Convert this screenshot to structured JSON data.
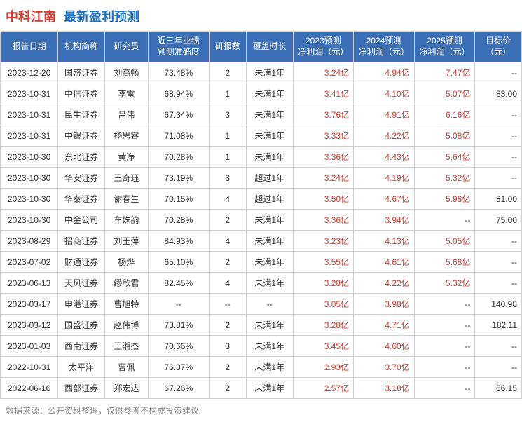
{
  "header": {
    "company": "中科江南",
    "title": "最新盈利预测"
  },
  "columns": {
    "date": "报告日期",
    "org": "机构简称",
    "researcher": "研究员",
    "accuracy": "近三年业绩\n预测准确度",
    "count": "研报数",
    "duration": "覆盖时长",
    "p2023": "2023预测\n净利润（元）",
    "p2024": "2024预测\n净利润（元）",
    "p2025": "2025预测\n净利润（元）",
    "target": "目标价\n（元）"
  },
  "rows": [
    {
      "date": "2023-12-20",
      "org": "国盛证券",
      "res": "刘高畅",
      "acc": "73.48%",
      "cnt": "2",
      "dur": "未满1年",
      "p23": "3.24亿",
      "p24": "4.94亿",
      "p25": "7.47亿",
      "tgt": "--"
    },
    {
      "date": "2023-10-31",
      "org": "中信证券",
      "res": "李雷",
      "acc": "68.94%",
      "cnt": "1",
      "dur": "未满1年",
      "p23": "3.41亿",
      "p24": "4.10亿",
      "p25": "5.07亿",
      "tgt": "83.00"
    },
    {
      "date": "2023-10-31",
      "org": "民生证券",
      "res": "吕伟",
      "acc": "67.34%",
      "cnt": "3",
      "dur": "未满1年",
      "p23": "3.76亿",
      "p24": "4.91亿",
      "p25": "6.16亿",
      "tgt": "--"
    },
    {
      "date": "2023-10-31",
      "org": "中银证券",
      "res": "杨思睿",
      "acc": "71.08%",
      "cnt": "1",
      "dur": "未满1年",
      "p23": "3.33亿",
      "p24": "4.22亿",
      "p25": "5.08亿",
      "tgt": "--"
    },
    {
      "date": "2023-10-30",
      "org": "东北证券",
      "res": "黄净",
      "acc": "70.28%",
      "cnt": "1",
      "dur": "未满1年",
      "p23": "3.36亿",
      "p24": "4.43亿",
      "p25": "5.64亿",
      "tgt": "--"
    },
    {
      "date": "2023-10-30",
      "org": "华安证券",
      "res": "王奇珏",
      "acc": "73.19%",
      "cnt": "3",
      "dur": "超过1年",
      "p23": "3.24亿",
      "p24": "4.19亿",
      "p25": "5.32亿",
      "tgt": "--"
    },
    {
      "date": "2023-10-30",
      "org": "华泰证券",
      "res": "谢春生",
      "acc": "70.15%",
      "cnt": "4",
      "dur": "超过1年",
      "p23": "3.50亿",
      "p24": "4.67亿",
      "p25": "5.98亿",
      "tgt": "81.00"
    },
    {
      "date": "2023-10-30",
      "org": "中金公司",
      "res": "车姝韵",
      "acc": "70.28%",
      "cnt": "2",
      "dur": "未满1年",
      "p23": "3.36亿",
      "p24": "3.94亿",
      "p25": "--",
      "tgt": "75.00"
    },
    {
      "date": "2023-08-29",
      "org": "招商证券",
      "res": "刘玉萍",
      "acc": "84.93%",
      "cnt": "4",
      "dur": "未满1年",
      "p23": "3.23亿",
      "p24": "4.13亿",
      "p25": "5.05亿",
      "tgt": "--"
    },
    {
      "date": "2023-07-02",
      "org": "财通证券",
      "res": "杨烨",
      "acc": "65.10%",
      "cnt": "2",
      "dur": "未满1年",
      "p23": "3.55亿",
      "p24": "4.61亿",
      "p25": "5.68亿",
      "tgt": "--"
    },
    {
      "date": "2023-06-13",
      "org": "天风证券",
      "res": "缪欣君",
      "acc": "82.45%",
      "cnt": "4",
      "dur": "未满1年",
      "p23": "3.28亿",
      "p24": "4.22亿",
      "p25": "5.32亿",
      "tgt": "--"
    },
    {
      "date": "2023-03-17",
      "org": "申港证券",
      "res": "曹旭特",
      "acc": "--",
      "cnt": "--",
      "dur": "--",
      "p23": "3.05亿",
      "p24": "3.98亿",
      "p25": "--",
      "tgt": "140.98"
    },
    {
      "date": "2023-03-12",
      "org": "国盛证券",
      "res": "赵伟博",
      "acc": "73.81%",
      "cnt": "2",
      "dur": "未满1年",
      "p23": "3.28亿",
      "p24": "4.71亿",
      "p25": "--",
      "tgt": "182.11"
    },
    {
      "date": "2023-01-03",
      "org": "西南证券",
      "res": "王湘杰",
      "acc": "70.66%",
      "cnt": "3",
      "dur": "未满1年",
      "p23": "3.45亿",
      "p24": "4.60亿",
      "p25": "--",
      "tgt": "--"
    },
    {
      "date": "2022-10-31",
      "org": "太平洋",
      "res": "曹佩",
      "acc": "76.87%",
      "cnt": "2",
      "dur": "未满1年",
      "p23": "2.93亿",
      "p24": "3.70亿",
      "p25": "--",
      "tgt": "--"
    },
    {
      "date": "2022-06-16",
      "org": "西部证券",
      "res": "郑宏达",
      "acc": "67.26%",
      "cnt": "2",
      "dur": "未满1年",
      "p23": "2.57亿",
      "p24": "3.18亿",
      "p25": "--",
      "tgt": "66.15"
    }
  ],
  "footer": "数据来源：公开资料整理，仅供参考不构成投资建议",
  "style": {
    "header_bg": "#3a6fb7",
    "header_fg": "#ffffff",
    "border": "#d0d0d0",
    "profit_color": "#d9372c",
    "company_color": "#d9372c",
    "title_color": "#1a6fc4",
    "footer_color": "#888888",
    "font_size_cell": 12,
    "font_size_header": 18
  }
}
